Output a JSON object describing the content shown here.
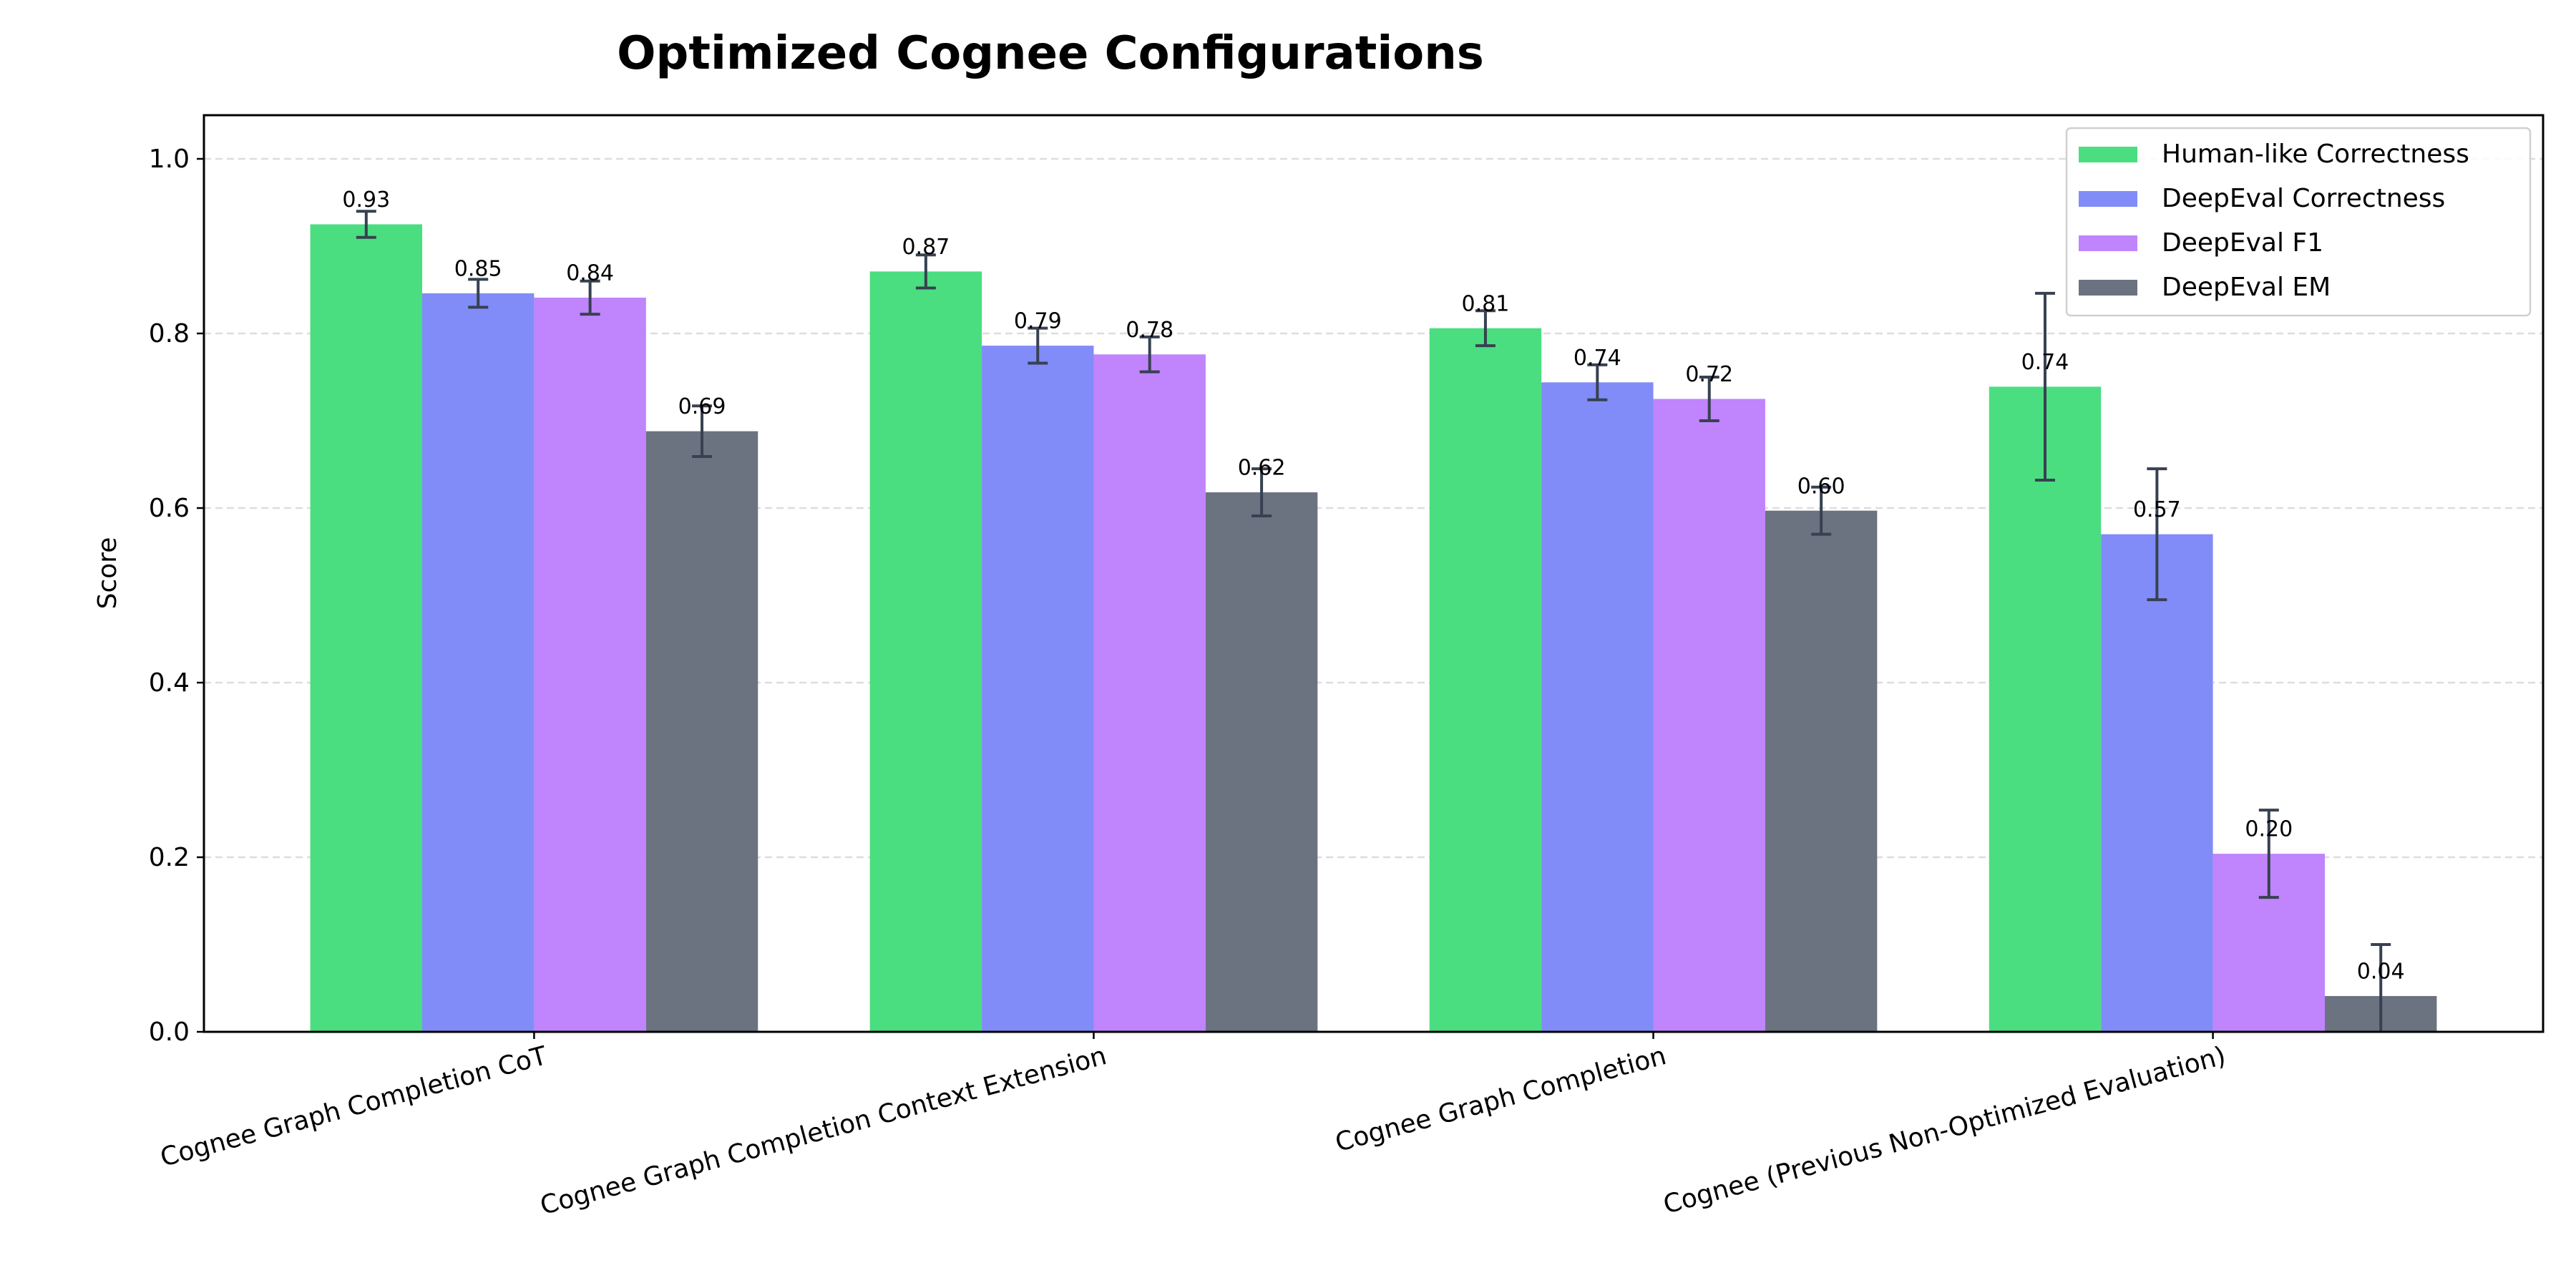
{
  "chart_data": {
    "type": "bar",
    "title": "Optimized Cognee Configurations",
    "xlabel": "",
    "ylabel": "Score",
    "ylim": [
      0,
      1.05
    ],
    "yticks": [
      "0.0",
      "0.2",
      "0.4",
      "0.6",
      "0.8",
      "1.0"
    ],
    "grid": "y-dashed",
    "legend_position": "top-right",
    "categories": [
      "Cognee Graph Completion CoT",
      "Cognee Graph Completion Context Extension",
      "Cognee Graph Completion",
      "Cognee (Previous Non-Optimized Evaluation)"
    ],
    "series": [
      {
        "name": "Human-like Correctness",
        "color": "#4ade80",
        "values": [
          0.925,
          0.871,
          0.806,
          0.739
        ],
        "errors": [
          0.015,
          0.019,
          0.02,
          0.107
        ],
        "labels": [
          "0.93",
          "0.87",
          "0.81",
          "0.74"
        ]
      },
      {
        "name": "DeepEval Correctness",
        "color": "#818cf8",
        "values": [
          0.846,
          0.786,
          0.744,
          0.57
        ],
        "errors": [
          0.016,
          0.02,
          0.02,
          0.075
        ],
        "labels": [
          "0.85",
          "0.79",
          "0.74",
          "0.57"
        ]
      },
      {
        "name": "DeepEval F1",
        "color": "#c084fc",
        "values": [
          0.841,
          0.776,
          0.725,
          0.204
        ],
        "errors": [
          0.019,
          0.02,
          0.025,
          0.05
        ],
        "labels": [
          "0.84",
          "0.78",
          "0.72",
          "0.20"
        ]
      },
      {
        "name": "DeepEval EM",
        "color": "#6b7280",
        "values": [
          0.688,
          0.618,
          0.597,
          0.041
        ],
        "errors": [
          0.029,
          0.027,
          0.027,
          0.059
        ],
        "labels": [
          "0.69",
          "0.62",
          "0.60",
          "0.04"
        ]
      }
    ],
    "error_bar_color": "#374151"
  }
}
